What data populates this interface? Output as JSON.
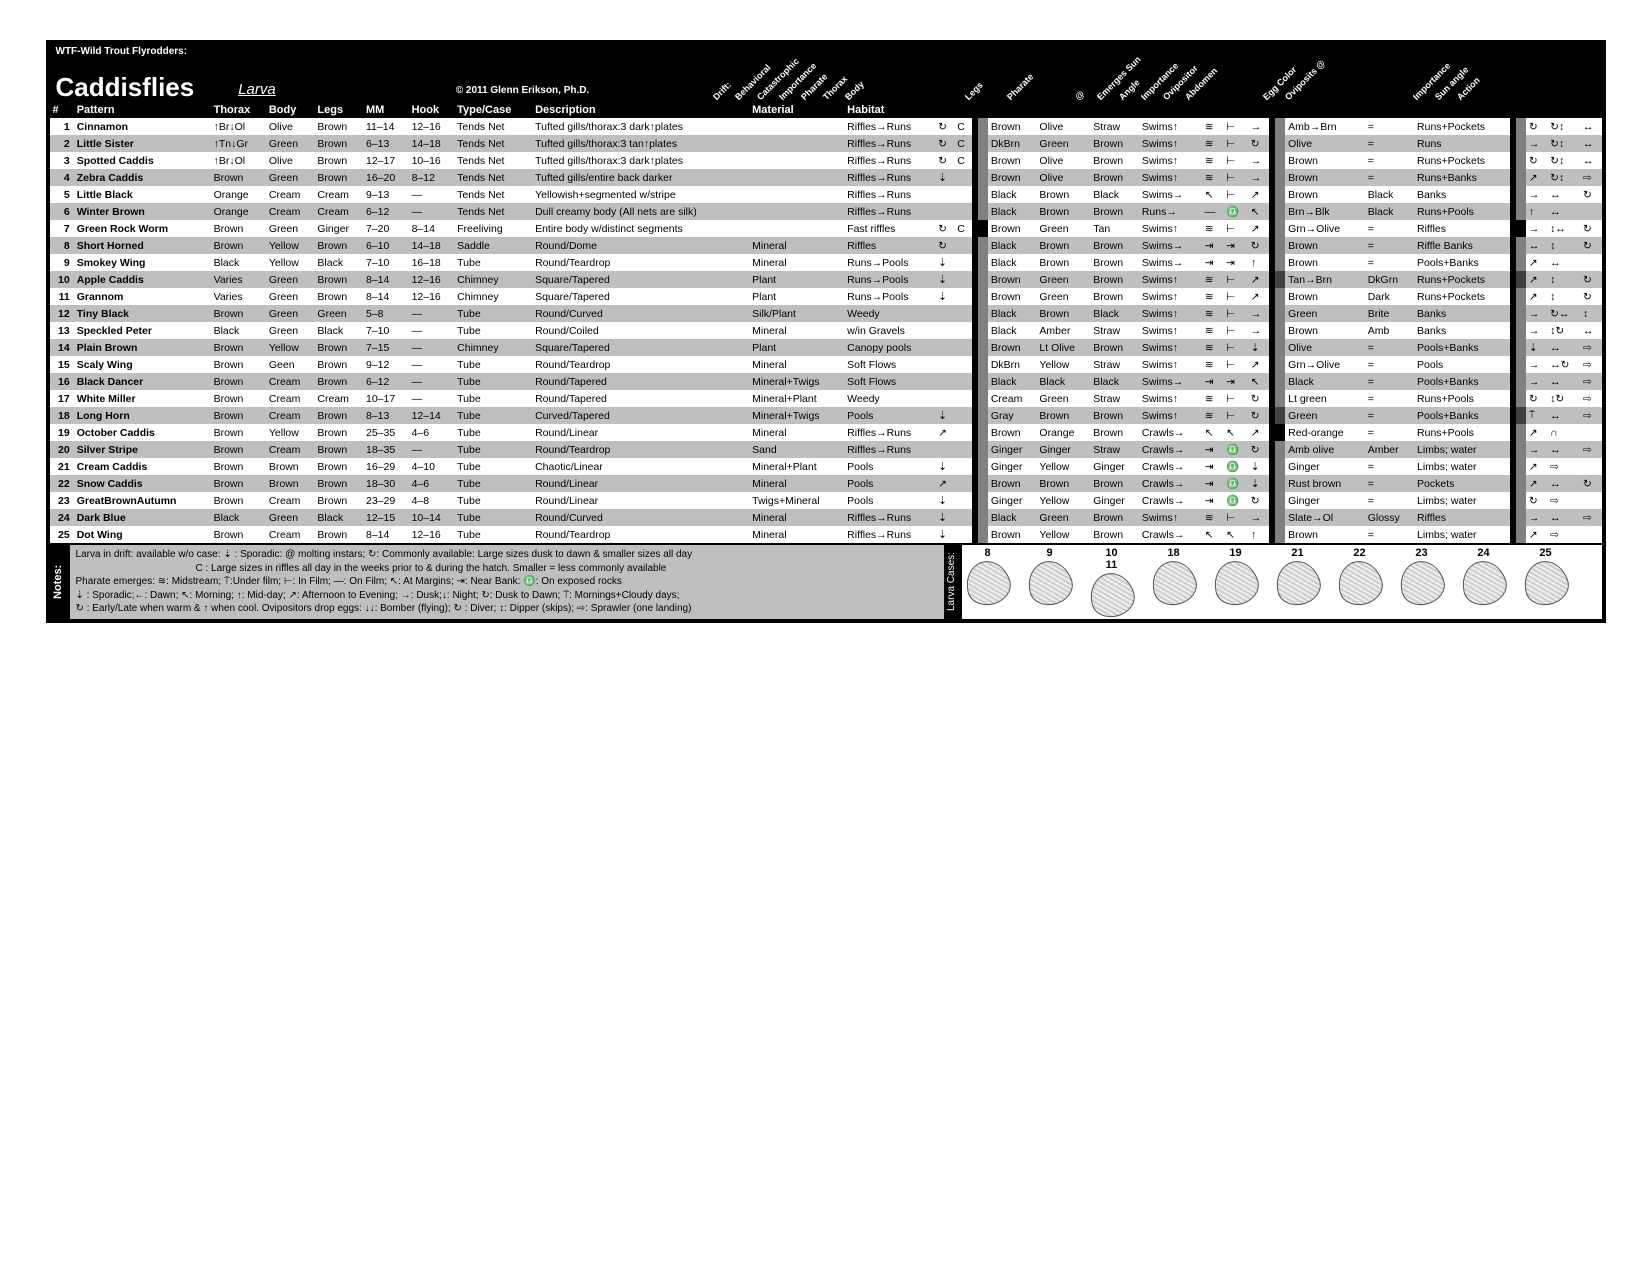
{
  "header": {
    "corp": "WTF-Wild Trout Flyrodders:",
    "title": "Caddisflies",
    "larva": "Larva",
    "copyright": "© 2011 Glenn Erikson, Ph.D."
  },
  "diag": {
    "g1": [
      "Drift:",
      "Behavioral",
      "Catastrophic",
      "Importance",
      "Pharate",
      "Thorax",
      "Body"
    ],
    "g2": [
      "Legs",
      "Pharate"
    ],
    "g3": [
      "@",
      "Emerges Sun",
      "Angle",
      "Importance",
      "Ovipositor",
      "Abdomen"
    ],
    "g4": [
      "Egg Color",
      "Oviposits @"
    ],
    "g5": [
      "Importance",
      "Sun angle",
      "Action"
    ]
  },
  "cols": [
    "#",
    "Pattern",
    "Thorax",
    "Body",
    "Legs",
    "MM",
    "Hook",
    "Type/Case",
    "Description",
    "Material",
    "Habitat"
  ],
  "rows": [
    {
      "n": "1",
      "name": "Cinnamon",
      "thorax": "↑Br↓Ol",
      "body": "Olive",
      "legs": "Brown",
      "mm": "11–14",
      "hook": "12–16",
      "type": "Tends Net",
      "desc": "Tufted gills/thorax:3 dark↑plates",
      "mat": "",
      "hab": "Riffles→Runs",
      "d1": "↻",
      "d2": "C",
      "s1": "",
      "p_th": "Brown",
      "p_bd": "Olive",
      "p_lg": "Straw",
      "phar": "Swims↑",
      "at": "≋",
      "es": "⊢",
      "an": "→",
      "s2": "",
      "ov": "Amb→Brn",
      "egg": "=",
      "ovat": "Runs+Pockets",
      "s3": "",
      "ia": "↻",
      "sa": "↻↕",
      "ac": "↔"
    },
    {
      "n": "2",
      "name": "Little Sister",
      "thorax": "↑Tn↓Gr",
      "body": "Green",
      "legs": "Brown",
      "mm": "6–13",
      "hook": "14–18",
      "type": "Tends Net",
      "desc": "Tufted gills/thorax:3 tan↑plates",
      "mat": "",
      "hab": "Riffles→Runs",
      "d1": "↻",
      "d2": "C",
      "s1": "",
      "p_th": "DkBrn",
      "p_bd": "Green",
      "p_lg": "Brown",
      "phar": "Swims↑",
      "at": "≋",
      "es": "⊢",
      "an": "↻",
      "s2": "",
      "ov": "Olive",
      "egg": "=",
      "ovat": "Runs",
      "s3": "",
      "ia": "→",
      "sa": "↻↕",
      "ac": "↔"
    },
    {
      "n": "3",
      "name": "Spotted Caddis",
      "thorax": "↑Br↓Ol",
      "body": "Olive",
      "legs": "Brown",
      "mm": "12–17",
      "hook": "10–16",
      "type": "Tends Net",
      "desc": "Tufted gills/thorax:3 dark↑plates",
      "mat": "",
      "hab": "Riffles→Runs",
      "d1": "↻",
      "d2": "C",
      "s1": "",
      "p_th": "Brown",
      "p_bd": "Olive",
      "p_lg": "Brown",
      "phar": "Swims↑",
      "at": "≋",
      "es": "⊢",
      "an": "→",
      "s2": "",
      "ov": "Brown",
      "egg": "=",
      "ovat": "Runs+Pockets",
      "s3": "",
      "ia": "↻",
      "sa": "↻↕",
      "ac": "↔"
    },
    {
      "n": "4",
      "name": "Zebra Caddis",
      "thorax": "Brown",
      "body": "Green",
      "legs": "Brown",
      "mm": "16–20",
      "hook": "8–12",
      "type": "Tends Net",
      "desc": "Tufted gills/entire back darker",
      "mat": "",
      "hab": "Riffles→Runs",
      "d1": "⇣",
      "d2": "",
      "s1": "",
      "p_th": "Brown",
      "p_bd": "Olive",
      "p_lg": "Brown",
      "phar": "Swims↑",
      "at": "≋",
      "es": "⊢",
      "an": "→",
      "s2": "",
      "ov": "Brown",
      "egg": "=",
      "ovat": "Runs+Banks",
      "s3": "",
      "ia": "↗",
      "sa": "↻↕",
      "ac": "⇨"
    },
    {
      "n": "5",
      "name": "Little Black",
      "thorax": "Orange",
      "body": "Cream",
      "legs": "Cream",
      "mm": "9–13",
      "hook": "—",
      "type": "Tends Net",
      "desc": "Yellowish+segmented w/stripe",
      "mat": "",
      "hab": "Riffles→Runs",
      "d1": "",
      "d2": "",
      "s1": "",
      "p_th": "Black",
      "p_bd": "Brown",
      "p_lg": "Black",
      "phar": "Swims→",
      "at": "↖",
      "es": "⊢",
      "an": "↗",
      "s2": "",
      "ov": "Brown",
      "egg": "Black",
      "ovat": "Banks",
      "s3": "",
      "ia": "→",
      "sa": "↔",
      "ac": "↻"
    },
    {
      "n": "6",
      "name": "Winter Brown",
      "thorax": "Orange",
      "body": "Cream",
      "legs": "Cream",
      "mm": "6–12",
      "hook": "—",
      "type": "Tends Net",
      "desc": "Dull creamy body  (All nets are silk)",
      "mat": "",
      "hab": "Riffles→Runs",
      "d1": "",
      "d2": "",
      "s1": "",
      "p_th": "Black",
      "p_bd": "Brown",
      "p_lg": "Brown",
      "phar": "Runs→",
      "at": "—",
      "es": "♎",
      "an": "↖",
      "s2": "",
      "ov": "Brn→Blk",
      "egg": "Black",
      "ovat": "Runs+Pools",
      "s3": "",
      "ia": "↑",
      "sa": "↔",
      "ac": ""
    },
    {
      "n": "7",
      "name": "Green Rock Worm",
      "thorax": "Brown",
      "body": "Green",
      "legs": "Ginger",
      "mm": "7–20",
      "hook": "8–14",
      "type": "Freeliving",
      "desc": "Entire body w/distinct segments",
      "mat": "",
      "hab": "Fast riffles",
      "d1": "↻",
      "d2": "C",
      "s1": "b",
      "p_th": "Brown",
      "p_bd": "Green",
      "p_lg": "Tan",
      "phar": "Swims↑",
      "at": "≋",
      "es": "⊢",
      "an": "↗",
      "s2": "",
      "ov": "Grn→Olive",
      "egg": "=",
      "ovat": "Riffles",
      "s3": "b",
      "ia": "→",
      "sa": "↕↔",
      "ac": "↻"
    },
    {
      "n": "8",
      "name": "Short Horned",
      "thorax": "Brown",
      "body": "Yellow",
      "legs": "Brown",
      "mm": "6–10",
      "hook": "14–18",
      "type": "Saddle",
      "desc": "Round/Dome",
      "mat": "Mineral",
      "hab": "Riffles",
      "d1": "↻",
      "d2": "",
      "s1": "",
      "p_th": "Black",
      "p_bd": "Brown",
      "p_lg": "Brown",
      "phar": "Swims→",
      "at": "⇥",
      "es": "⇥",
      "an": "↻",
      "s2": "",
      "ov": "Brown",
      "egg": "=",
      "ovat": "Riffle Banks",
      "s3": "",
      "ia": "↔",
      "sa": "↕",
      "ac": "↻"
    },
    {
      "n": "9",
      "name": "Smokey Wing",
      "thorax": "Black",
      "body": "Yellow",
      "legs": "Black",
      "mm": "7–10",
      "hook": "16–18",
      "type": "Tube",
      "desc": "Round/Teardrop",
      "mat": "Mineral",
      "hab": "Runs→Pools",
      "d1": "⇣",
      "d2": "",
      "s1": "",
      "p_th": "Black",
      "p_bd": "Brown",
      "p_lg": "Brown",
      "phar": "Swims→",
      "at": "⇥",
      "es": "⇥",
      "an": "↑",
      "s2": "",
      "ov": "Brown",
      "egg": "=",
      "ovat": "Pools+Banks",
      "s3": "",
      "ia": "↗",
      "sa": "↔",
      "ac": ""
    },
    {
      "n": "10",
      "name": "Apple Caddis",
      "thorax": "Varies",
      "body": "Green",
      "legs": "Brown",
      "mm": "8–14",
      "hook": "12–16",
      "type": "Chimney",
      "desc": "Square/Tapered",
      "mat": "Plant",
      "hab": "Runs→Pools",
      "d1": "⇣",
      "d2": "",
      "s1": "",
      "p_th": "Brown",
      "p_bd": "Green",
      "p_lg": "Brown",
      "phar": "Swims↑",
      "at": "≋",
      "es": "⊢",
      "an": "↗",
      "s2": "d",
      "ov": "Tan→Brn",
      "egg": "DkGrn",
      "ovat": "Runs+Pockets",
      "s3": "d",
      "ia": "↗",
      "sa": "↕",
      "ac": "↻"
    },
    {
      "n": "11",
      "name": "Grannom",
      "thorax": "Varies",
      "body": "Green",
      "legs": "Brown",
      "mm": "8–14",
      "hook": "12–16",
      "type": "Chimney",
      "desc": "Square/Tapered",
      "mat": "Plant",
      "hab": "Runs→Pools",
      "d1": "⇣",
      "d2": "",
      "s1": "",
      "p_th": "Brown",
      "p_bd": "Green",
      "p_lg": "Brown",
      "phar": "Swims↑",
      "at": "≋",
      "es": "⊢",
      "an": "↗",
      "s2": "",
      "ov": "Brown",
      "egg": "Dark",
      "ovat": "Runs+Pockets",
      "s3": "",
      "ia": "↗",
      "sa": "↕",
      "ac": "↻"
    },
    {
      "n": "12",
      "name": "Tiny Black",
      "thorax": "Brown",
      "body": "Green",
      "legs": "Green",
      "mm": "5–8",
      "hook": "—",
      "type": "Tube",
      "desc": "Round/Curved",
      "mat": "Silk/Plant",
      "hab": "Weedy",
      "d1": "",
      "d2": "",
      "s1": "",
      "p_th": "Black",
      "p_bd": "Brown",
      "p_lg": "Black",
      "phar": "Swims↑",
      "at": "≋",
      "es": "⊢",
      "an": "→",
      "s2": "",
      "ov": "Green",
      "egg": "Brite",
      "ovat": "Banks",
      "s3": "",
      "ia": "→",
      "sa": "↻↔",
      "ac": "↕"
    },
    {
      "n": "13",
      "name": "Speckled Peter",
      "thorax": "Black",
      "body": "Green",
      "legs": "Black",
      "mm": "7–10",
      "hook": "—",
      "type": "Tube",
      "desc": "Round/Coiled",
      "mat": "Mineral",
      "hab": "w/in Gravels",
      "d1": "",
      "d2": "",
      "s1": "",
      "p_th": "Black",
      "p_bd": "Amber",
      "p_lg": "Straw",
      "phar": "Swims↑",
      "at": "≋",
      "es": "⊢",
      "an": "→",
      "s2": "",
      "ov": "Brown",
      "egg": "Amb",
      "ovat": "Banks",
      "s3": "",
      "ia": "→",
      "sa": "↕↻",
      "ac": "↔"
    },
    {
      "n": "14",
      "name": "Plain Brown",
      "thorax": "Brown",
      "body": "Yellow",
      "legs": "Brown",
      "mm": "7–15",
      "hook": "—",
      "type": "Chimney",
      "desc": "Square/Tapered",
      "mat": "Plant",
      "hab": "Canopy pools",
      "d1": "",
      "d2": "",
      "s1": "",
      "p_th": "Brown",
      "p_bd": "Lt Olive",
      "p_lg": "Brown",
      "phar": "Swims↑",
      "at": "≋",
      "es": "⊢",
      "an": "⇣",
      "s2": "",
      "ov": "Olive",
      "egg": "=",
      "ovat": "Pools+Banks",
      "s3": "",
      "ia": "⇣",
      "sa": "↔",
      "ac": "⇨"
    },
    {
      "n": "15",
      "name": "Scaly Wing",
      "thorax": "Brown",
      "body": "Geen",
      "legs": "Brown",
      "mm": "9–12",
      "hook": "—",
      "type": "Tube",
      "desc": "Round/Teardrop",
      "mat": "Mineral",
      "hab": "Soft Flows",
      "d1": "",
      "d2": "",
      "s1": "",
      "p_th": "DkBrn",
      "p_bd": "Yellow",
      "p_lg": "Straw",
      "phar": "Swims↑",
      "at": "≋",
      "es": "⊢",
      "an": "↗",
      "s2": "",
      "ov": "Grn→Olive",
      "egg": "=",
      "ovat": "Pools",
      "s3": "",
      "ia": "→",
      "sa": "↔↻",
      "ac": "⇨"
    },
    {
      "n": "16",
      "name": "Black Dancer",
      "thorax": "Brown",
      "body": "Cream",
      "legs": "Brown",
      "mm": "6–12",
      "hook": "—",
      "type": "Tube",
      "desc": "Round/Tapered",
      "mat": "Mineral+Twigs",
      "hab": "Soft Flows",
      "d1": "",
      "d2": "",
      "s1": "",
      "p_th": "Black",
      "p_bd": "Black",
      "p_lg": "Black",
      "phar": "Swims→",
      "at": "⇥",
      "es": "⇥",
      "an": "↖",
      "s2": "",
      "ov": "Black",
      "egg": "=",
      "ovat": "Pools+Banks",
      "s3": "",
      "ia": "→",
      "sa": "↔",
      "ac": "⇨"
    },
    {
      "n": "17",
      "name": "White Miller",
      "thorax": "Brown",
      "body": "Cream",
      "legs": "Cream",
      "mm": "10–17",
      "hook": "—",
      "type": "Tube",
      "desc": "Round/Tapered",
      "mat": "Mineral+Plant",
      "hab": "Weedy",
      "d1": "",
      "d2": "",
      "s1": "",
      "p_th": "Cream",
      "p_bd": "Green",
      "p_lg": "Straw",
      "phar": "Swims↑",
      "at": "≋",
      "es": "⊢",
      "an": "↻",
      "s2": "",
      "ov": "Lt green",
      "egg": "=",
      "ovat": "Runs+Pools",
      "s3": "",
      "ia": "↻",
      "sa": "↕↻",
      "ac": "⇨"
    },
    {
      "n": "18",
      "name": "Long Horn",
      "thorax": "Brown",
      "body": "Cream",
      "legs": "Brown",
      "mm": "8–13",
      "hook": "12–14",
      "type": "Tube",
      "desc": "Curved/Tapered",
      "mat": "Mineral+Twigs",
      "hab": "Pools",
      "d1": "⇣",
      "d2": "",
      "s1": "",
      "p_th": "Gray",
      "p_bd": "Brown",
      "p_lg": "Brown",
      "phar": "Swims↑",
      "at": "≋",
      "es": "⊢",
      "an": "↻",
      "s2": "d",
      "ov": "Green",
      "egg": "=",
      "ovat": "Pools+Banks",
      "s3": "d",
      "ia": "⍑",
      "sa": "↔",
      "ac": "⇨"
    },
    {
      "n": "19",
      "name": "October Caddis",
      "thorax": "Brown",
      "body": "Yellow",
      "legs": "Brown",
      "mm": "25–35",
      "hook": "4–6",
      "type": "Tube",
      "desc": "Round/Linear",
      "mat": "Mineral",
      "hab": "Riffles→Runs",
      "d1": "↗",
      "d2": "",
      "s1": "",
      "p_th": "Brown",
      "p_bd": "Orange",
      "p_lg": "Brown",
      "phar": "Crawls→",
      "at": "↖",
      "es": "↖",
      "an": "↗",
      "s2": "b",
      "ov": "Red-orange",
      "egg": "=",
      "ovat": "Runs+Pools",
      "s3": "",
      "ia": "↗",
      "sa": "∩",
      "ac": ""
    },
    {
      "n": "20",
      "name": "Silver Stripe",
      "thorax": "Brown",
      "body": "Cream",
      "legs": "Brown",
      "mm": "18–35",
      "hook": "—",
      "type": "Tube",
      "desc": "Round/Teardrop",
      "mat": "Sand",
      "hab": "Riffles→Runs",
      "d1": "",
      "d2": "",
      "s1": "",
      "p_th": "Ginger",
      "p_bd": "Ginger",
      "p_lg": "Straw",
      "phar": "Crawls→",
      "at": "⇥",
      "es": "♎",
      "an": "↻",
      "s2": "",
      "ov": "Amb olive",
      "egg": "Amber",
      "ovat": "Limbs; water",
      "s3": "",
      "ia": "→",
      "sa": "↔",
      "ac": "⇨"
    },
    {
      "n": "21",
      "name": "Cream Caddis",
      "thorax": "Brown",
      "body": "Brown",
      "legs": "Brown",
      "mm": "16–29",
      "hook": "4–10",
      "type": "Tube",
      "desc": "Chaotic/Linear",
      "mat": "Mineral+Plant",
      "hab": "Pools",
      "d1": "⇣",
      "d2": "",
      "s1": "",
      "p_th": "Ginger",
      "p_bd": "Yellow",
      "p_lg": "Ginger",
      "phar": "Crawls→",
      "at": "⇥",
      "es": "♎",
      "an": "⇣",
      "s2": "",
      "ov": "Ginger",
      "egg": "=",
      "ovat": "Limbs; water",
      "s3": "",
      "ia": "↗",
      "sa": "⇨",
      "ac": ""
    },
    {
      "n": "22",
      "name": "Snow Caddis",
      "thorax": "Brown",
      "body": "Brown",
      "legs": "Brown",
      "mm": "18–30",
      "hook": "4–6",
      "type": "Tube",
      "desc": "Round/Linear",
      "mat": "Mineral",
      "hab": "Pools",
      "d1": "↗",
      "d2": "",
      "s1": "",
      "p_th": "Brown",
      "p_bd": "Brown",
      "p_lg": "Brown",
      "phar": "Crawls→",
      "at": "⇥",
      "es": "♎",
      "an": "⇣",
      "s2": "",
      "ov": "Rust brown",
      "egg": "=",
      "ovat": "Pockets",
      "s3": "",
      "ia": "↗",
      "sa": "↔",
      "ac": "↻"
    },
    {
      "n": "23",
      "name": "GreatBrownAutumn",
      "thorax": "Brown",
      "body": "Cream",
      "legs": "Brown",
      "mm": "23–29",
      "hook": "4–8",
      "type": "Tube",
      "desc": "Round/Linear",
      "mat": "Twigs+Mineral",
      "hab": "Pools",
      "d1": "⇣",
      "d2": "",
      "s1": "",
      "p_th": "Ginger",
      "p_bd": "Yellow",
      "p_lg": "Ginger",
      "phar": "Crawls→",
      "at": "⇥",
      "es": "♎",
      "an": "↻",
      "s2": "",
      "ov": "Ginger",
      "egg": "=",
      "ovat": "Limbs; water",
      "s3": "",
      "ia": "↻",
      "sa": "⇨",
      "ac": ""
    },
    {
      "n": "24",
      "name": "Dark Blue",
      "thorax": "Black",
      "body": "Green",
      "legs": "Black",
      "mm": "12–15",
      "hook": "10–14",
      "type": "Tube",
      "desc": "Round/Curved",
      "mat": "Mineral",
      "hab": "Riffles→Runs",
      "d1": "⇣",
      "d2": "",
      "s1": "",
      "p_th": "Black",
      "p_bd": "Green",
      "p_lg": "Brown",
      "phar": "Swims↑",
      "at": "≋",
      "es": "⊢",
      "an": "→",
      "s2": "",
      "ov": "Slate→Ol",
      "egg": "Glossy",
      "ovat": "Riffles",
      "s3": "",
      "ia": "→",
      "sa": "↔",
      "ac": "⇨"
    },
    {
      "n": "25",
      "name": "Dot Wing",
      "thorax": "Brown",
      "body": "Cream",
      "legs": "Brown",
      "mm": "8–14",
      "hook": "12–16",
      "type": "Tube",
      "desc": "Round/Teardrop",
      "mat": "Mineral",
      "hab": "Riffles→Runs",
      "d1": "⇣",
      "d2": "",
      "s1": "",
      "p_th": "Brown",
      "p_bd": "Yellow",
      "p_lg": "Brown",
      "phar": "Crawls→",
      "at": "↖",
      "es": "↖",
      "an": "↑",
      "s2": "",
      "ov": "Brown",
      "egg": "=",
      "ovat": "Limbs; water",
      "s3": "",
      "ia": "↗",
      "sa": "⇨",
      "ac": ""
    }
  ],
  "notes": {
    "label": "Notes:",
    "l1": "Larva in drift: available w/o case:  ⇣ : Sporadic: @ molting instars; ↻: Commonly available: Large sizes dusk to dawn & smaller sizes all day",
    "l2": "C : Large sizes in riffles all day in the weeks prior to & during the hatch.   Smaller = less commonly available",
    "l3": "Pharate emerges: ≋: Midstream; ⍑:Under film; ⊢: In Film; —: On Film; ↖: At Margins; ⇥: Near Bank: ♎: On exposed rocks",
    "l4": "⇣ : Sporadic;←: Dawn; ↖: Morning; ↑: Mid-day; ↗: Afternoon to Evening; →: Dusk;↓: Night; ↻: Dusk to Dawn; ⍑: Mornings+Cloudy days;",
    "l5": "↻ : Early/Late when warm & ↑ when cool. Ovipositors drop eggs: ↓↓: Bomber (flying); ↻ : Diver; ↕: Dipper (skips); ⇨: Sprawler (one landing)"
  },
  "cases": {
    "label": "Larva Cases:",
    "nums": [
      "8",
      "9",
      "10\n11",
      "18",
      "19",
      "21",
      "22",
      "23",
      "24",
      "25"
    ]
  }
}
